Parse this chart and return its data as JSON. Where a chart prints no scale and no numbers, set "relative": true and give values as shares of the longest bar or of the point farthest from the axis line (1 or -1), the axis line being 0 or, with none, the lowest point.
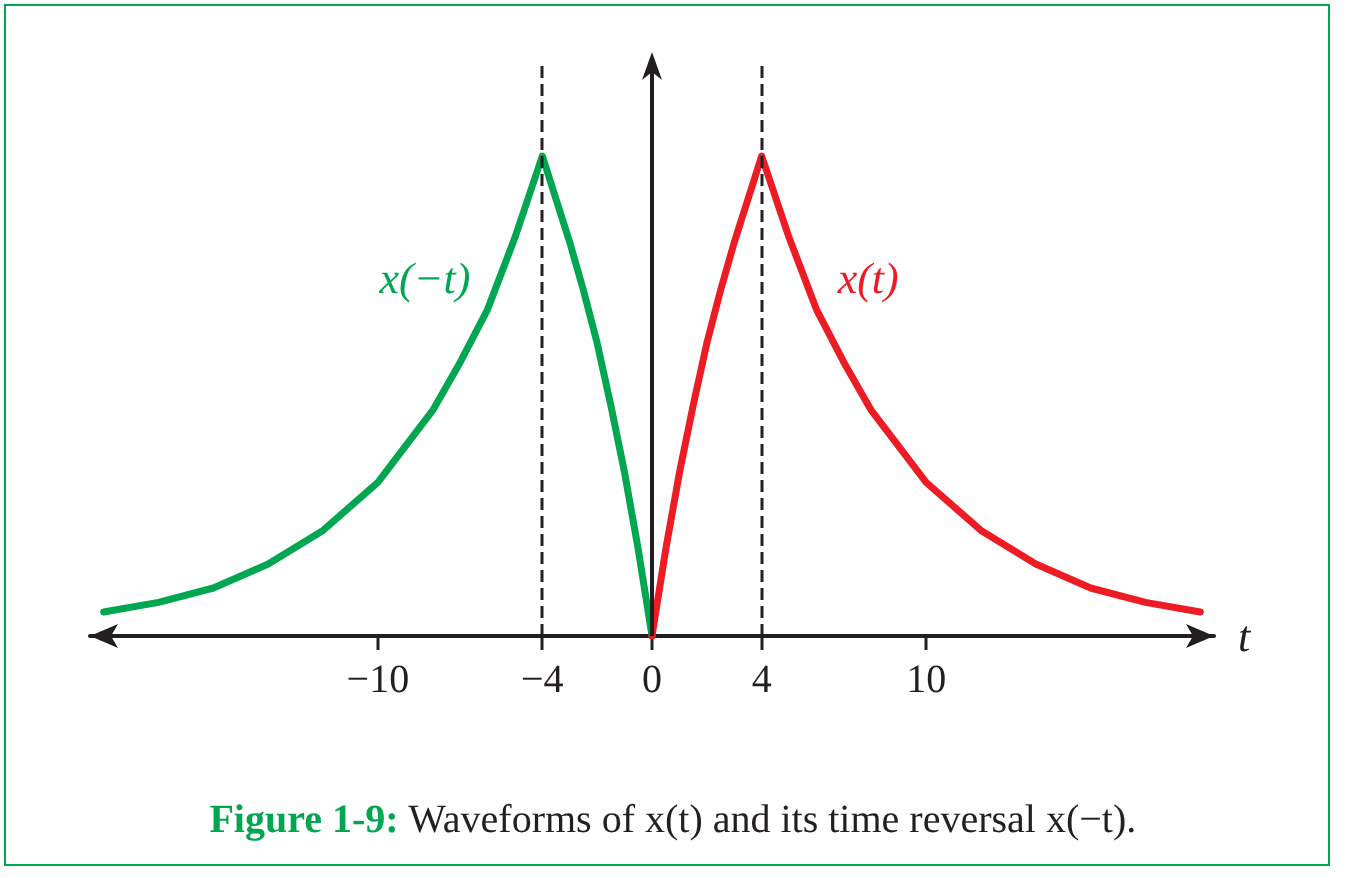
{
  "chart_data": {
    "type": "line",
    "relative": true,
    "title": "Figure 1-9: Waveforms of x(t) and its time reversal x(−t).",
    "xlabel": "t",
    "xlim": [
      -20.5,
      20.5
    ],
    "xticks": [
      -10,
      -4,
      0,
      4,
      10
    ],
    "legend": false,
    "grid": false,
    "marker": "none",
    "line_style": "solid",
    "series": [
      {
        "name": "x(−t)",
        "color": "#00a650",
        "x": [
          -20,
          -18,
          -16,
          -14,
          -12,
          -10,
          -8,
          -7,
          -6,
          -5,
          -4,
          -3.5,
          -3,
          -2.5,
          -2,
          -1.5,
          -1,
          -0.5,
          0
        ],
        "values": [
          0.05,
          0.07,
          0.1,
          0.15,
          0.22,
          0.32,
          0.47,
          0.57,
          0.68,
          0.83,
          1,
          0.91,
          0.82,
          0.72,
          0.61,
          0.48,
          0.34,
          0.18,
          0
        ]
      },
      {
        "name": "x(t)",
        "color": "#ed1c24",
        "x": [
          0,
          0.5,
          1,
          1.5,
          2,
          2.5,
          3,
          3.5,
          4,
          5,
          6,
          7,
          8,
          10,
          12,
          14,
          16,
          18,
          20
        ],
        "values": [
          0,
          0.18,
          0.34,
          0.48,
          0.61,
          0.72,
          0.82,
          0.91,
          1,
          0.83,
          0.68,
          0.57,
          0.47,
          0.32,
          0.22,
          0.15,
          0.1,
          0.07,
          0.05
        ]
      }
    ],
    "ref_lines": [
      {
        "axis": "x",
        "value": -4,
        "color": "#231f20",
        "line_style": "dashed"
      },
      {
        "axis": "x",
        "value": 4,
        "color": "#231f20",
        "line_style": "dashed"
      }
    ]
  }
}
